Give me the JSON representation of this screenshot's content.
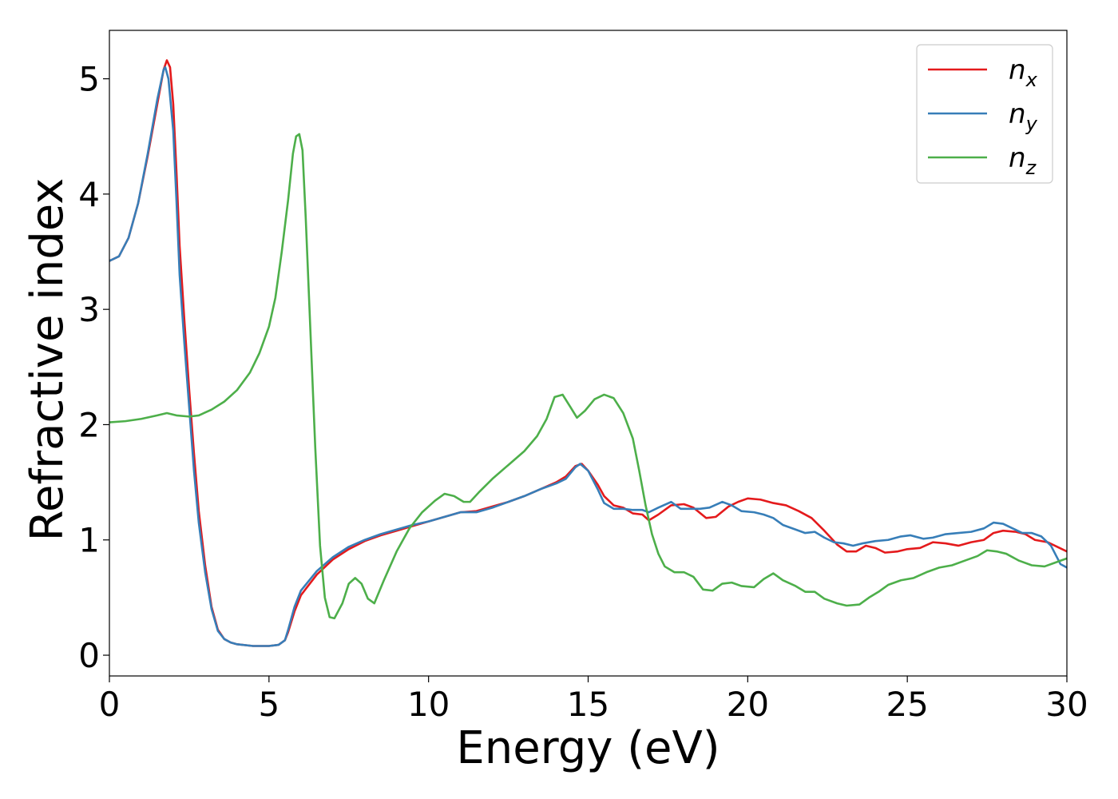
{
  "chart_data": {
    "type": "line",
    "title": "",
    "xlabel": "Energy (eV)",
    "ylabel": "Refractive index",
    "xlim": [
      0,
      30
    ],
    "ylim": [
      -0.18,
      5.42
    ],
    "xticks": [
      0,
      5,
      10,
      15,
      20,
      25,
      30
    ],
    "yticks": [
      0,
      1,
      2,
      3,
      4,
      5
    ],
    "grid": false,
    "legend_position": "top-right",
    "series": [
      {
        "name": "n_x",
        "legend_base": "n",
        "legend_sub": "x",
        "color": "#e41a1c",
        "points": [
          [
            0,
            3.42
          ],
          [
            0.3,
            3.46
          ],
          [
            0.6,
            3.62
          ],
          [
            0.9,
            3.92
          ],
          [
            1.2,
            4.33
          ],
          [
            1.5,
            4.78
          ],
          [
            1.7,
            5.08
          ],
          [
            1.8,
            5.16
          ],
          [
            1.9,
            5.1
          ],
          [
            2.0,
            4.78
          ],
          [
            2.1,
            4.2
          ],
          [
            2.2,
            3.55
          ],
          [
            2.35,
            2.9
          ],
          [
            2.5,
            2.3
          ],
          [
            2.65,
            1.75
          ],
          [
            2.8,
            1.25
          ],
          [
            3.0,
            0.78
          ],
          [
            3.2,
            0.42
          ],
          [
            3.4,
            0.22
          ],
          [
            3.6,
            0.14
          ],
          [
            3.8,
            0.11
          ],
          [
            4.0,
            0.095
          ],
          [
            4.5,
            0.08
          ],
          [
            5.0,
            0.08
          ],
          [
            5.3,
            0.09
          ],
          [
            5.5,
            0.13
          ],
          [
            5.6,
            0.2
          ],
          [
            5.8,
            0.38
          ],
          [
            6.0,
            0.52
          ],
          [
            6.5,
            0.7
          ],
          [
            7.0,
            0.83
          ],
          [
            7.5,
            0.92
          ],
          [
            8.0,
            0.99
          ],
          [
            8.5,
            1.04
          ],
          [
            9.0,
            1.08
          ],
          [
            9.5,
            1.12
          ],
          [
            10.0,
            1.16
          ],
          [
            10.5,
            1.2
          ],
          [
            11.0,
            1.24
          ],
          [
            11.5,
            1.25
          ],
          [
            12.0,
            1.29
          ],
          [
            12.5,
            1.33
          ],
          [
            13.0,
            1.38
          ],
          [
            13.5,
            1.44
          ],
          [
            14.0,
            1.5
          ],
          [
            14.3,
            1.55
          ],
          [
            14.6,
            1.64
          ],
          [
            14.8,
            1.66
          ],
          [
            15.0,
            1.6
          ],
          [
            15.3,
            1.48
          ],
          [
            15.5,
            1.38
          ],
          [
            15.8,
            1.3
          ],
          [
            16.1,
            1.28
          ],
          [
            16.4,
            1.23
          ],
          [
            16.7,
            1.22
          ],
          [
            16.9,
            1.17
          ],
          [
            17.2,
            1.22
          ],
          [
            17.6,
            1.3
          ],
          [
            18.0,
            1.31
          ],
          [
            18.3,
            1.28
          ],
          [
            18.7,
            1.19
          ],
          [
            19.0,
            1.2
          ],
          [
            19.4,
            1.29
          ],
          [
            19.7,
            1.33
          ],
          [
            20.0,
            1.36
          ],
          [
            20.4,
            1.35
          ],
          [
            20.8,
            1.32
          ],
          [
            21.2,
            1.3
          ],
          [
            21.6,
            1.25
          ],
          [
            22.0,
            1.19
          ],
          [
            22.4,
            1.08
          ],
          [
            22.8,
            0.96
          ],
          [
            23.1,
            0.9
          ],
          [
            23.4,
            0.9
          ],
          [
            23.7,
            0.95
          ],
          [
            24.0,
            0.93
          ],
          [
            24.3,
            0.89
          ],
          [
            24.7,
            0.9
          ],
          [
            25.0,
            0.92
          ],
          [
            25.4,
            0.93
          ],
          [
            25.8,
            0.98
          ],
          [
            26.2,
            0.97
          ],
          [
            26.6,
            0.95
          ],
          [
            27.0,
            0.98
          ],
          [
            27.4,
            1.0
          ],
          [
            27.7,
            1.06
          ],
          [
            28.0,
            1.08
          ],
          [
            28.4,
            1.07
          ],
          [
            28.7,
            1.05
          ],
          [
            29.0,
            1.0
          ],
          [
            29.4,
            0.98
          ],
          [
            29.7,
            0.94
          ],
          [
            30.0,
            0.9
          ]
        ]
      },
      {
        "name": "n_y",
        "legend_base": "n",
        "legend_sub": "y",
        "color": "#377eb8",
        "points": [
          [
            0,
            3.42
          ],
          [
            0.3,
            3.46
          ],
          [
            0.6,
            3.62
          ],
          [
            0.9,
            3.92
          ],
          [
            1.2,
            4.35
          ],
          [
            1.5,
            4.82
          ],
          [
            1.7,
            5.08
          ],
          [
            1.75,
            5.1
          ],
          [
            1.85,
            5.0
          ],
          [
            2.0,
            4.55
          ],
          [
            2.1,
            3.95
          ],
          [
            2.2,
            3.3
          ],
          [
            2.35,
            2.7
          ],
          [
            2.5,
            2.15
          ],
          [
            2.65,
            1.6
          ],
          [
            2.8,
            1.15
          ],
          [
            3.0,
            0.72
          ],
          [
            3.2,
            0.4
          ],
          [
            3.4,
            0.21
          ],
          [
            3.6,
            0.14
          ],
          [
            3.8,
            0.11
          ],
          [
            4.0,
            0.095
          ],
          [
            4.5,
            0.08
          ],
          [
            5.0,
            0.08
          ],
          [
            5.3,
            0.09
          ],
          [
            5.5,
            0.13
          ],
          [
            5.6,
            0.22
          ],
          [
            5.8,
            0.42
          ],
          [
            6.0,
            0.56
          ],
          [
            6.5,
            0.73
          ],
          [
            7.0,
            0.85
          ],
          [
            7.5,
            0.94
          ],
          [
            8.0,
            1.0
          ],
          [
            8.5,
            1.05
          ],
          [
            9.0,
            1.09
          ],
          [
            9.5,
            1.13
          ],
          [
            10.0,
            1.16
          ],
          [
            10.5,
            1.2
          ],
          [
            11.0,
            1.24
          ],
          [
            11.5,
            1.24
          ],
          [
            12.0,
            1.28
          ],
          [
            12.5,
            1.33
          ],
          [
            13.0,
            1.38
          ],
          [
            13.5,
            1.44
          ],
          [
            14.0,
            1.49
          ],
          [
            14.3,
            1.53
          ],
          [
            14.6,
            1.63
          ],
          [
            14.75,
            1.66
          ],
          [
            15.0,
            1.6
          ],
          [
            15.3,
            1.44
          ],
          [
            15.5,
            1.32
          ],
          [
            15.8,
            1.27
          ],
          [
            16.1,
            1.27
          ],
          [
            16.4,
            1.26
          ],
          [
            16.7,
            1.26
          ],
          [
            16.9,
            1.24
          ],
          [
            17.2,
            1.28
          ],
          [
            17.6,
            1.33
          ],
          [
            17.9,
            1.27
          ],
          [
            18.2,
            1.27
          ],
          [
            18.5,
            1.27
          ],
          [
            18.8,
            1.28
          ],
          [
            19.2,
            1.33
          ],
          [
            19.5,
            1.3
          ],
          [
            19.8,
            1.25
          ],
          [
            20.2,
            1.24
          ],
          [
            20.5,
            1.22
          ],
          [
            20.8,
            1.19
          ],
          [
            21.1,
            1.13
          ],
          [
            21.5,
            1.09
          ],
          [
            21.8,
            1.06
          ],
          [
            22.1,
            1.07
          ],
          [
            22.4,
            1.02
          ],
          [
            22.7,
            0.98
          ],
          [
            23.0,
            0.97
          ],
          [
            23.3,
            0.95
          ],
          [
            23.6,
            0.97
          ],
          [
            24.0,
            0.99
          ],
          [
            24.4,
            1.0
          ],
          [
            24.8,
            1.03
          ],
          [
            25.1,
            1.04
          ],
          [
            25.5,
            1.01
          ],
          [
            25.8,
            1.02
          ],
          [
            26.2,
            1.05
          ],
          [
            26.6,
            1.06
          ],
          [
            27.0,
            1.07
          ],
          [
            27.4,
            1.1
          ],
          [
            27.7,
            1.15
          ],
          [
            28.0,
            1.14
          ],
          [
            28.3,
            1.1
          ],
          [
            28.6,
            1.06
          ],
          [
            28.9,
            1.06
          ],
          [
            29.2,
            1.03
          ],
          [
            29.5,
            0.95
          ],
          [
            29.8,
            0.79
          ],
          [
            30.0,
            0.76
          ]
        ]
      },
      {
        "name": "n_z",
        "legend_base": "n",
        "legend_sub": "z",
        "color": "#4daf4a",
        "points": [
          [
            0,
            2.02
          ],
          [
            0.5,
            2.03
          ],
          [
            1.0,
            2.05
          ],
          [
            1.5,
            2.08
          ],
          [
            1.8,
            2.1
          ],
          [
            2.1,
            2.08
          ],
          [
            2.5,
            2.07
          ],
          [
            2.8,
            2.08
          ],
          [
            3.2,
            2.13
          ],
          [
            3.6,
            2.2
          ],
          [
            4.0,
            2.3
          ],
          [
            4.4,
            2.45
          ],
          [
            4.7,
            2.62
          ],
          [
            5.0,
            2.85
          ],
          [
            5.2,
            3.1
          ],
          [
            5.4,
            3.5
          ],
          [
            5.6,
            3.95
          ],
          [
            5.75,
            4.35
          ],
          [
            5.85,
            4.5
          ],
          [
            5.95,
            4.52
          ],
          [
            6.05,
            4.38
          ],
          [
            6.15,
            3.8
          ],
          [
            6.3,
            2.8
          ],
          [
            6.45,
            1.8
          ],
          [
            6.6,
            0.95
          ],
          [
            6.75,
            0.5
          ],
          [
            6.9,
            0.33
          ],
          [
            7.05,
            0.32
          ],
          [
            7.3,
            0.45
          ],
          [
            7.5,
            0.62
          ],
          [
            7.7,
            0.67
          ],
          [
            7.9,
            0.62
          ],
          [
            8.1,
            0.49
          ],
          [
            8.3,
            0.45
          ],
          [
            8.6,
            0.65
          ],
          [
            9.0,
            0.9
          ],
          [
            9.4,
            1.1
          ],
          [
            9.8,
            1.24
          ],
          [
            10.2,
            1.34
          ],
          [
            10.5,
            1.4
          ],
          [
            10.8,
            1.38
          ],
          [
            11.1,
            1.33
          ],
          [
            11.3,
            1.33
          ],
          [
            11.6,
            1.42
          ],
          [
            12.0,
            1.53
          ],
          [
            12.5,
            1.65
          ],
          [
            13.0,
            1.77
          ],
          [
            13.4,
            1.9
          ],
          [
            13.7,
            2.05
          ],
          [
            13.95,
            2.24
          ],
          [
            14.2,
            2.26
          ],
          [
            14.45,
            2.15
          ],
          [
            14.65,
            2.06
          ],
          [
            14.9,
            2.12
          ],
          [
            15.2,
            2.22
          ],
          [
            15.5,
            2.26
          ],
          [
            15.8,
            2.23
          ],
          [
            16.1,
            2.1
          ],
          [
            16.4,
            1.88
          ],
          [
            16.6,
            1.6
          ],
          [
            16.8,
            1.3
          ],
          [
            17.0,
            1.05
          ],
          [
            17.2,
            0.88
          ],
          [
            17.4,
            0.77
          ],
          [
            17.7,
            0.72
          ],
          [
            18.0,
            0.72
          ],
          [
            18.3,
            0.68
          ],
          [
            18.6,
            0.57
          ],
          [
            18.9,
            0.56
          ],
          [
            19.2,
            0.62
          ],
          [
            19.5,
            0.63
          ],
          [
            19.8,
            0.6
          ],
          [
            20.2,
            0.59
          ],
          [
            20.5,
            0.66
          ],
          [
            20.8,
            0.71
          ],
          [
            21.1,
            0.65
          ],
          [
            21.5,
            0.6
          ],
          [
            21.8,
            0.55
          ],
          [
            22.1,
            0.55
          ],
          [
            22.4,
            0.49
          ],
          [
            22.8,
            0.45
          ],
          [
            23.1,
            0.43
          ],
          [
            23.5,
            0.44
          ],
          [
            23.8,
            0.5
          ],
          [
            24.1,
            0.55
          ],
          [
            24.4,
            0.61
          ],
          [
            24.8,
            0.65
          ],
          [
            25.2,
            0.67
          ],
          [
            25.6,
            0.72
          ],
          [
            26.0,
            0.76
          ],
          [
            26.4,
            0.78
          ],
          [
            26.8,
            0.82
          ],
          [
            27.2,
            0.86
          ],
          [
            27.5,
            0.91
          ],
          [
            27.8,
            0.9
          ],
          [
            28.1,
            0.88
          ],
          [
            28.5,
            0.82
          ],
          [
            28.9,
            0.78
          ],
          [
            29.3,
            0.77
          ],
          [
            29.6,
            0.8
          ],
          [
            30.0,
            0.84
          ]
        ]
      }
    ]
  }
}
